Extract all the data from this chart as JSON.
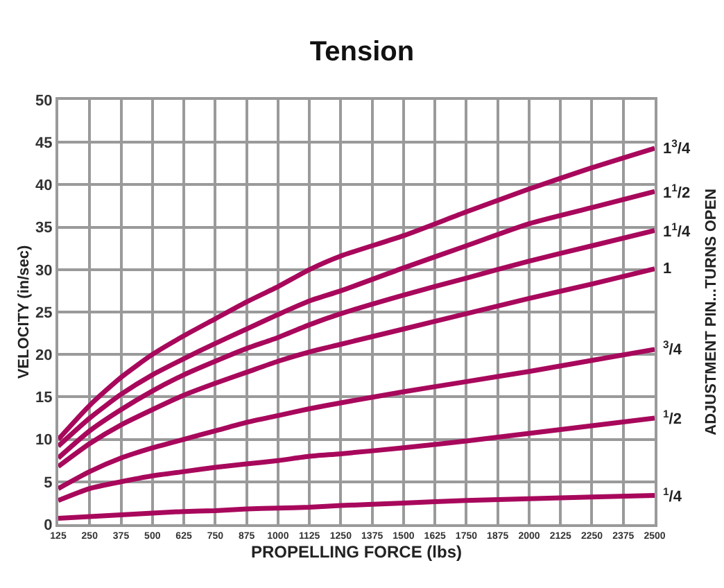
{
  "chart_data": {
    "type": "line",
    "title": "Tension",
    "xlabel": "PROPELLING FORCE (lbs)",
    "ylabel": "VELOCITY (in/sec)",
    "legend_title": "ADJUSTMENT PIN...TURNS OPEN",
    "x": [
      125,
      250,
      375,
      500,
      625,
      750,
      875,
      1000,
      1125,
      1250,
      1500,
      1750,
      2000,
      2250,
      2500
    ],
    "series": [
      {
        "name": "1$^{3}$/4",
        "color": "#a8085c",
        "values": [
          10,
          14,
          17.3,
          20,
          22.2,
          24.2,
          26.2,
          28,
          30,
          31.6,
          34,
          36.8,
          39.5,
          42,
          44.3
        ]
      },
      {
        "name": "1$^{1}$/2",
        "color": "#a8085c",
        "values": [
          9.2,
          12.5,
          15.3,
          17.6,
          19.5,
          21.3,
          23,
          24.7,
          26.3,
          27.5,
          30.2,
          32.8,
          35.4,
          37.3,
          39.2
        ]
      },
      {
        "name": "1$^{1}$/4",
        "color": "#a8085c",
        "values": [
          7.8,
          11,
          13.5,
          15.7,
          17.6,
          19.2,
          20.7,
          22,
          23.5,
          24.8,
          27,
          29,
          31,
          32.8,
          34.6
        ]
      },
      {
        "name": "1",
        "color": "#a8085c",
        "values": [
          6.8,
          9.5,
          11.7,
          13.5,
          15.2,
          16.6,
          17.9,
          19.2,
          20.3,
          21.2,
          23,
          24.8,
          26.6,
          28.3,
          30.1
        ]
      },
      {
        "name": "$^{3}$/4",
        "color": "#a8085c",
        "values": [
          4.2,
          6.2,
          7.8,
          9,
          10,
          11,
          12,
          12.8,
          13.6,
          14.3,
          15.6,
          16.8,
          18,
          19.3,
          20.6
        ]
      },
      {
        "name": "$^{1}$/2",
        "color": "#a8085c",
        "values": [
          2.8,
          4.2,
          5,
          5.7,
          6.2,
          6.7,
          7.1,
          7.5,
          8,
          8.3,
          9,
          9.8,
          10.7,
          11.6,
          12.5
        ]
      },
      {
        "name": "$^{1}$/4",
        "color": "#a8085c",
        "values": [
          0.7,
          0.9,
          1.1,
          1.3,
          1.5,
          1.6,
          1.8,
          1.9,
          2.0,
          2.2,
          2.5,
          2.8,
          3.0,
          3.2,
          3.4
        ]
      }
    ],
    "xlim": [
      125,
      2500
    ],
    "xticks": [
      125,
      250,
      375,
      500,
      625,
      750,
      875,
      1000,
      1125,
      1250,
      1375,
      1500,
      1625,
      1750,
      1875,
      2000,
      2125,
      2250,
      2375,
      2500
    ],
    "ylim": [
      0,
      50
    ],
    "yticks": [
      0,
      5,
      10,
      15,
      20,
      25,
      30,
      35,
      40,
      45,
      50
    ],
    "grid": true,
    "legend": false,
    "marker": "none",
    "line_style": "solid"
  }
}
